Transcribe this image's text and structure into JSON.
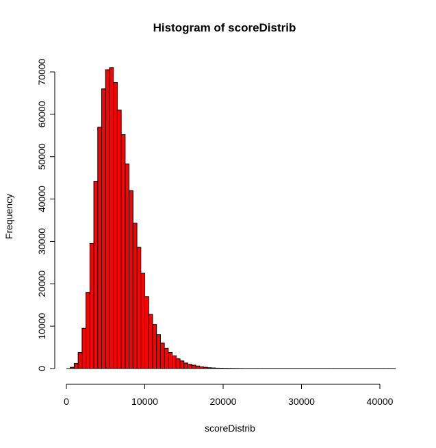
{
  "chart_data": {
    "type": "bar",
    "title": "Histogram of scoreDistrib",
    "xlabel": "scoreDistrib",
    "ylabel": "Frequency",
    "bar_color": "#ff0000",
    "bar_border_color": "#000000",
    "bin_width": 500,
    "bin_start": 0,
    "frequencies": [
      0,
      300,
      1200,
      3800,
      9500,
      18000,
      29500,
      44200,
      57000,
      66000,
      70500,
      71000,
      67500,
      61000,
      55200,
      48300,
      42000,
      34300,
      28600,
      22500,
      17000,
      12800,
      10400,
      8000,
      6000,
      4800,
      3800,
      3000,
      2300,
      1800,
      1300,
      1000,
      800,
      600,
      400,
      300,
      200,
      150,
      100,
      80,
      60,
      50,
      40,
      30,
      20,
      10,
      10,
      10,
      10,
      10,
      10,
      10,
      10,
      10,
      10,
      10,
      10,
      10,
      10,
      10,
      10,
      10,
      10,
      10,
      10,
      10,
      10,
      10,
      10,
      10,
      10,
      10,
      10,
      10,
      10,
      10,
      10,
      10,
      10,
      10,
      10,
      10,
      10,
      10
    ],
    "xlim": [
      0,
      42000
    ],
    "ylim": [
      0,
      71000
    ],
    "x_ticks": [
      0,
      10000,
      20000,
      30000,
      40000
    ],
    "y_ticks": [
      0,
      10000,
      20000,
      30000,
      40000,
      50000,
      60000,
      70000
    ],
    "x_tick_labels": [
      "0",
      "10000",
      "20000",
      "30000",
      "40000"
    ],
    "y_tick_labels": [
      "0",
      "10000",
      "20000",
      "30000",
      "40000",
      "50000",
      "60000",
      "70000"
    ],
    "grid": false,
    "legend": "none"
  }
}
